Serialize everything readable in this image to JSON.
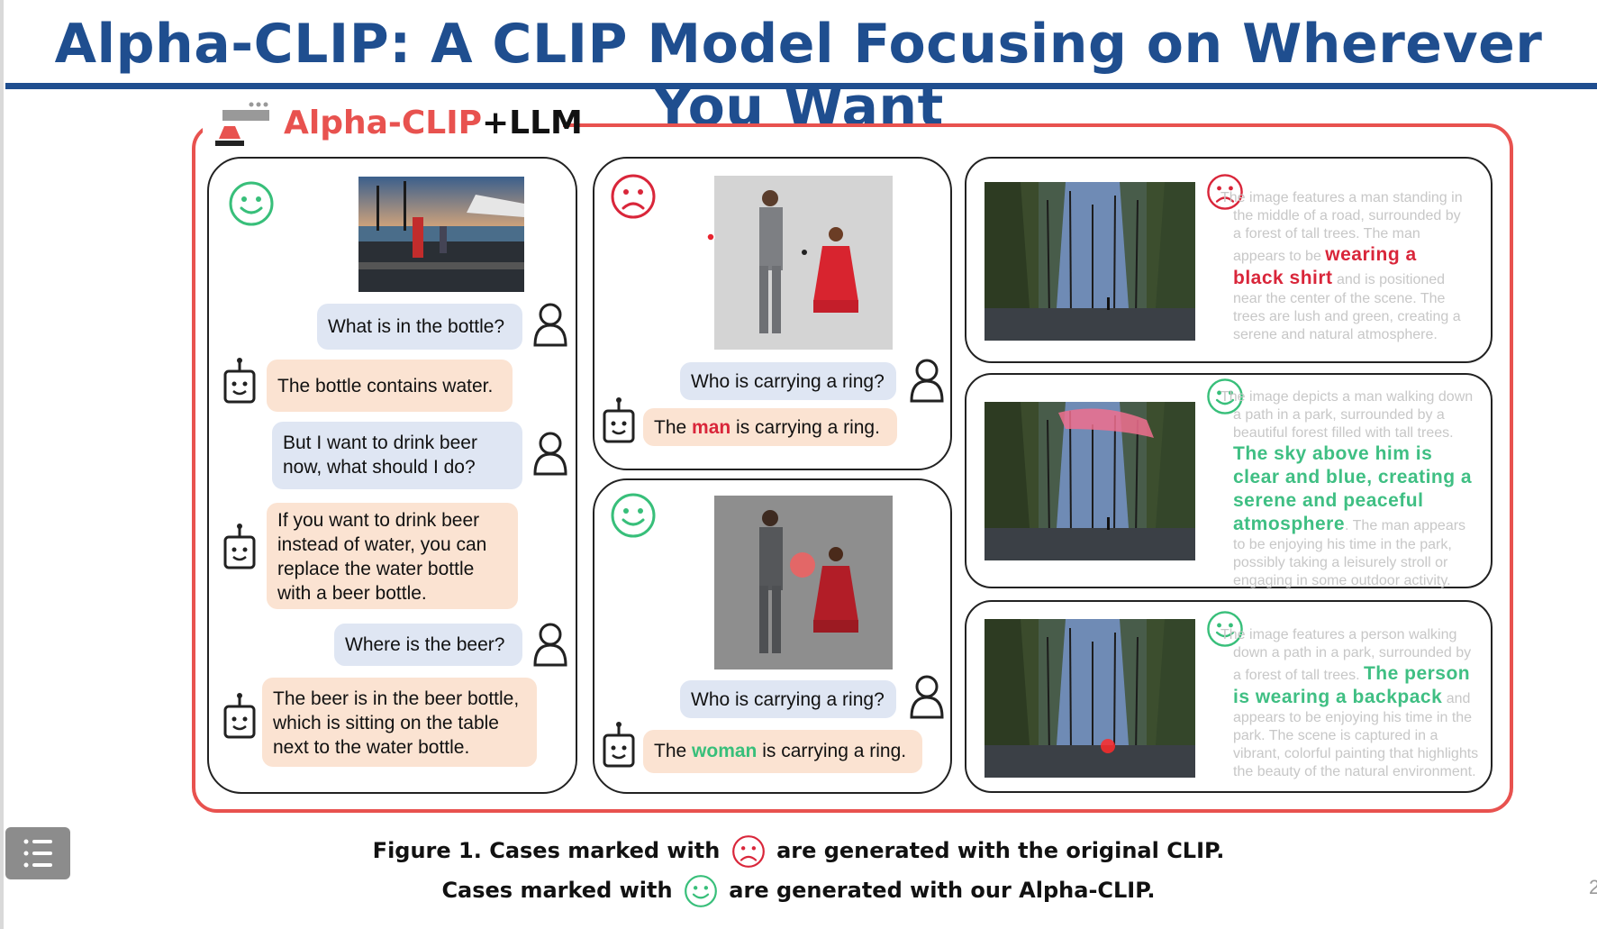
{
  "slide": {
    "title": "Alpha-CLIP: A CLIP Model Focusing on Wherever You Want",
    "page_number": "2"
  },
  "logo": {
    "alpha_text": "Alpha-CLIP",
    "plus_llm_text": "+LLM"
  },
  "colors": {
    "title_blue": "#1f4e8f",
    "frame_red": "#e8524f",
    "sad_red": "#d9263a",
    "happy_green": "#38bf7a"
  },
  "panel1": {
    "messages": [
      {
        "role": "user",
        "text": "What is in the bottle?"
      },
      {
        "role": "bot",
        "text": "The bottle contains water."
      },
      {
        "role": "user",
        "line1": "But I want to drink beer",
        "line2": "now, what should I do?"
      },
      {
        "role": "bot",
        "line1": "If you want to drink beer",
        "line2": "instead of water, you can",
        "line3": "replace the water bottle",
        "line4": "with a beer bottle."
      },
      {
        "role": "user",
        "text": "Where is the beer?"
      },
      {
        "role": "bot",
        "line1": "The beer is in the beer bottle,",
        "line2": "which is sitting on the table",
        "line3": "next to the water bottle."
      }
    ]
  },
  "panel2": {
    "question": "Who is carrying a ring?",
    "answer_pre": "The ",
    "answer_word": "man",
    "answer_post": " is carrying a ring."
  },
  "panel3": {
    "question": "Who is carrying a ring?",
    "answer_pre": "The ",
    "answer_word": "woman",
    "answer_post": " is carrying a ring."
  },
  "panel4": {
    "pre": "The image features a man standing in the middle of a road, surrounded by a forest of tall trees. The man appears to be ",
    "highlight": "wearing a black shirt",
    "post": " and is positioned near the center of the scene. The trees are lush and green, creating a serene and natural atmosphere."
  },
  "panel5": {
    "pre": "The image depicts a man walking down a path in a park, surrounded by a beautiful forest filled with tall trees. ",
    "highlight": "The sky above him is clear and blue, creating a serene and peaceful atmosphere",
    "post": ". The man appears to be enjoying his time in the park, possibly taking a leisurely stroll or engaging in some outdoor activity."
  },
  "panel6": {
    "pre": "The image features a person walking down a path in a park, surrounded by a forest of tall trees. ",
    "highlight": "The person is wearing a backpack",
    "post": " and appears to be enjoying his time in the park. The scene is captured in a vibrant, colorful painting that highlights the beauty of the natural environment."
  },
  "caption": {
    "line1_pre": "Figure 1. Cases marked with",
    "line1_post": "are generated with the original CLIP.",
    "line2_pre": "Cases marked with",
    "line2_post": "are generated with our Alpha-CLIP."
  }
}
